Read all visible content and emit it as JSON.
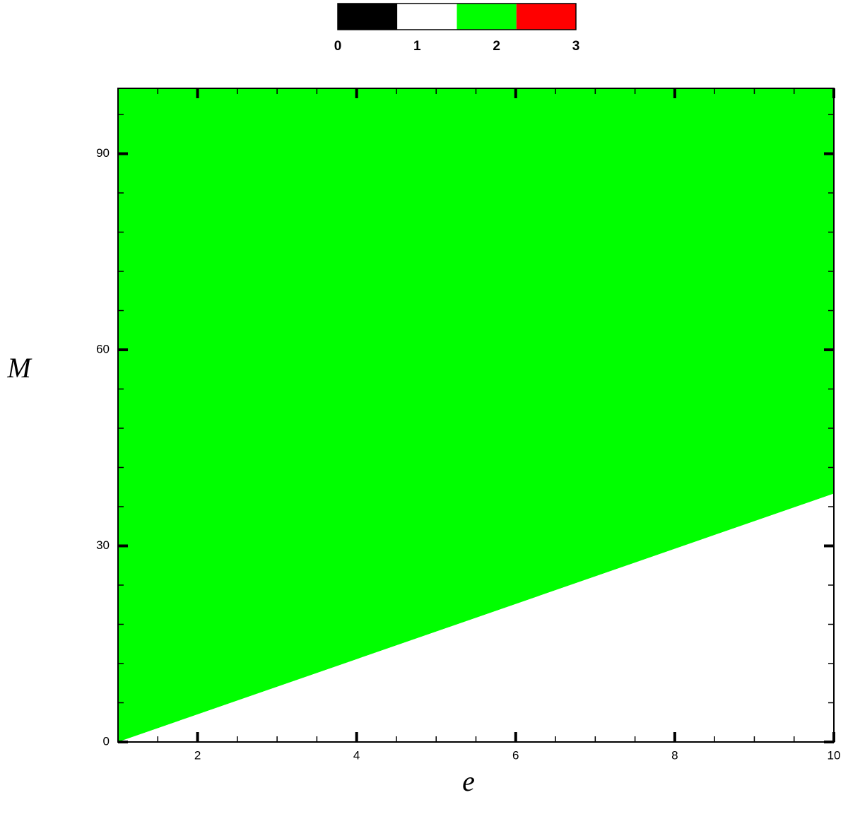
{
  "chart_data": {
    "type": "region",
    "xlabel": "e",
    "ylabel": "M",
    "xlim": [
      1,
      10
    ],
    "ylim": [
      0,
      100
    ],
    "xticks": [
      2,
      4,
      6,
      8,
      10
    ],
    "yticks": [
      0,
      30,
      60,
      90
    ],
    "xminorticks": [
      1.5,
      2.5,
      3,
      3.5,
      4.5,
      5,
      5.5,
      6.5,
      7,
      7.5,
      8.5,
      9,
      9.5
    ],
    "yminorticks": [
      6,
      12,
      18,
      24,
      36,
      42,
      48,
      54,
      66,
      72,
      78,
      84,
      96
    ],
    "colorbar": {
      "ticks": [
        0,
        1,
        2,
        3
      ],
      "colors": [
        "#000000",
        "#ffffff",
        "#00ff00",
        "#ff0000"
      ]
    },
    "regions": [
      {
        "value": 2,
        "x": [
          1,
          10,
          10,
          1
        ],
        "y": [
          0,
          38,
          100,
          100
        ]
      },
      {
        "value": 1,
        "x": [
          1,
          10,
          10
        ],
        "y": [
          0,
          0,
          38
        ]
      }
    ]
  }
}
